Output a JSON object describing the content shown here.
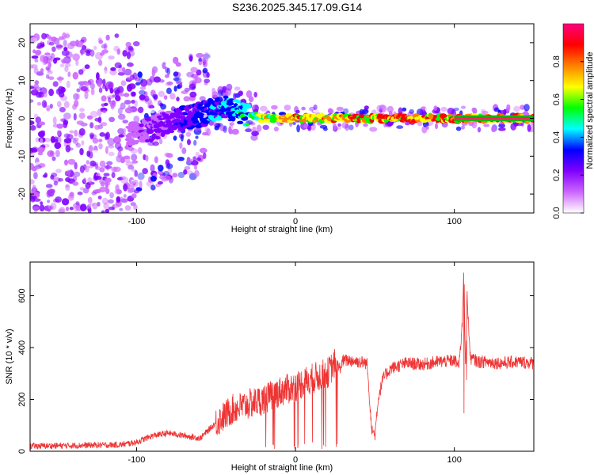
{
  "title": "S236.2025.345.17.09.G14",
  "chart_data": [
    {
      "type": "heatmap",
      "xlabel": "Height of straight line (km)",
      "ylabel": "Frequency (Hz)",
      "xlim": [
        -167,
        150
      ],
      "ylim": [
        -25,
        25
      ],
      "xticks": [
        -100,
        0,
        100
      ],
      "yticks": [
        -20,
        -10,
        0,
        10,
        20
      ],
      "colorbar": {
        "label": "Normalized spectral amplitude",
        "range": [
          0,
          1
        ],
        "ticks": [
          0.0,
          0.2,
          0.4,
          0.6,
          0.8
        ],
        "colormap": [
          "#ffffff",
          "#cc66ff",
          "#8000ff",
          "#0000ff",
          "#00ffff",
          "#00ff00",
          "#ffff00",
          "#ff8000",
          "#ff0000",
          "#ff0080"
        ]
      },
      "ridge": {
        "description_x": [
          -100,
          -80,
          -60,
          -45,
          -30,
          -20,
          0,
          50,
          100,
          150
        ],
        "center_freq": [
          -4,
          -1,
          1,
          3,
          1,
          0,
          0,
          0,
          0,
          0
        ],
        "peak_amplitude": [
          0.15,
          0.25,
          0.35,
          0.45,
          0.55,
          0.75,
          0.85,
          0.9,
          0.9,
          0.9
        ]
      },
      "grid": false
    },
    {
      "type": "line",
      "xlabel": "Height of straight line (km)",
      "ylabel": "SNR (10 * v/v)",
      "xlim": [
        -167,
        150
      ],
      "ylim": [
        0,
        730
      ],
      "xticks": [
        -100,
        0,
        100
      ],
      "yticks": [
        0,
        200,
        400,
        600
      ],
      "color": "#ee3333",
      "series": [
        {
          "x": [
            -167,
            -140,
            -110,
            -100,
            -90,
            -80,
            -70,
            -60,
            -50,
            -40,
            -30,
            -20,
            -10,
            0,
            10,
            20,
            25,
            28,
            30,
            35,
            40,
            45,
            48,
            50,
            52,
            55,
            60,
            70,
            80,
            90,
            100,
            103,
            105,
            106,
            107,
            108,
            110,
            115,
            120,
            130,
            140,
            150
          ],
          "y": [
            20,
            22,
            25,
            35,
            60,
            70,
            60,
            50,
            110,
            160,
            180,
            200,
            230,
            250,
            280,
            300,
            340,
            320,
            350,
            350,
            345,
            340,
            90,
            60,
            200,
            280,
            320,
            340,
            335,
            345,
            350,
            330,
            500,
            720,
            300,
            600,
            360,
            345,
            345,
            340,
            345,
            340
          ]
        }
      ],
      "grid": false
    }
  ]
}
